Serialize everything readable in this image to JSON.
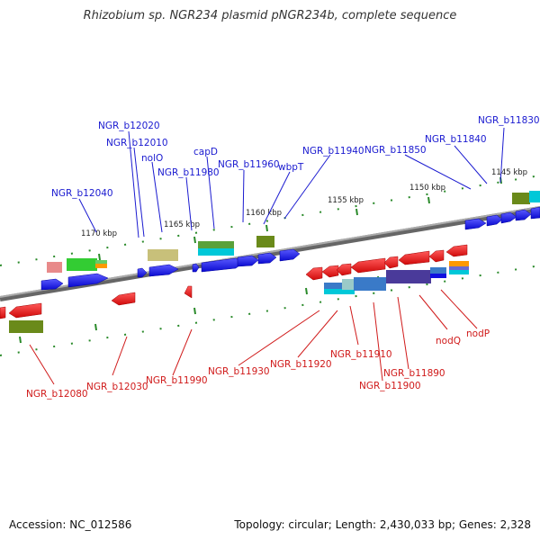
{
  "title": "Rhizobium sp. NGR234 plasmid pNGR234b, complete sequence",
  "footer": {
    "accession": "Accession: NC_012586",
    "summary": "Topology: circular; Length: 2,430,033 bp; Genes: 2,328"
  },
  "scale_labels": [
    "1145 kbp",
    "1150 kbp",
    "1155 kbp",
    "1160 kbp",
    "1165 kbp",
    "1170 kbp"
  ],
  "top_gene_labels": [
    "NGR_b11830",
    "NGR_b11840",
    "NGR_b11850",
    "NGR_b11940",
    "wbpT",
    "NGR_b11960",
    "capD",
    "NGR_b11980",
    "nolO",
    "NGR_b12010",
    "NGR_b12020",
    "NGR_b12040"
  ],
  "bottom_gene_labels": [
    "NGR_b12080",
    "NGR_b12030",
    "NGR_b11990",
    "NGR_b11930",
    "NGR_b11920",
    "NGR_b11910",
    "NGR_b11890",
    "NGR_b11900",
    "nodQ",
    "nodP"
  ],
  "colors": {
    "forward_gene": "#1010e0",
    "reverse_gene": "#e01010",
    "backbone": "#888888",
    "tick": "#2a8a2a",
    "top_label": "#1a1ad0",
    "bottom_label": "#d01a1a"
  }
}
